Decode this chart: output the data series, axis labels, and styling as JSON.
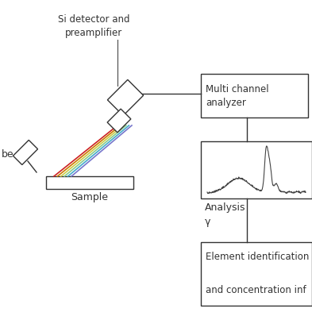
{
  "bg_color": "#ffffff",
  "detector_label": "Si detector and\npreamplifier",
  "sample_label": "Sample",
  "tube_label": "be",
  "analyzer_label": "Multi channel\nanalyzer",
  "analysis_label": "Analysis\nγ",
  "element_label": "Element identification\n\nand concentration inf",
  "beam_colors": [
    "#cc2222",
    "#cc7700",
    "#cccc44",
    "#88cc88",
    "#44aacc",
    "#7777cc"
  ],
  "line_color": "#333333",
  "box_color": "#ffffff",
  "spec_line_color": "#444444"
}
